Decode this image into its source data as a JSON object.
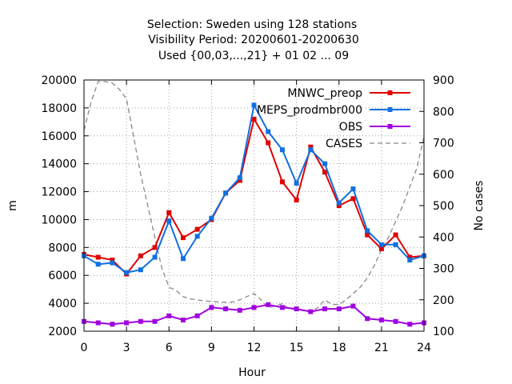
{
  "chart_data": {
    "type": "line",
    "title_lines": [
      "Selection: Sweden using   128 stations",
      "Visibility   Period: 20200601-20200630",
      "Used {00,03,...,21} + 01 02 ... 09"
    ],
    "xlabel": "Hour",
    "ylabel": "m",
    "y2label": "No cases",
    "xlim": [
      0,
      24
    ],
    "ylim": [
      2000,
      20000
    ],
    "y2lim": [
      100,
      900
    ],
    "xticks": [
      0,
      3,
      6,
      9,
      12,
      15,
      18,
      21,
      24
    ],
    "yticks": [
      2000,
      4000,
      6000,
      8000,
      10000,
      12000,
      14000,
      16000,
      18000,
      20000
    ],
    "y2ticks": [
      100,
      200,
      300,
      400,
      500,
      600,
      700,
      800,
      900
    ],
    "grid": true,
    "legend_position": "top-right",
    "x": [
      0,
      1,
      2,
      3,
      4,
      5,
      6,
      7,
      8,
      9,
      10,
      11,
      12,
      13,
      14,
      15,
      16,
      17,
      18,
      19,
      20,
      21,
      22,
      23,
      24
    ],
    "series": [
      {
        "name": "MNWC_preop",
        "color": "#e00000",
        "marker": "square",
        "axis": "left",
        "values": [
          7500,
          7300,
          7100,
          6100,
          7400,
          8000,
          10500,
          8700,
          9300,
          10000,
          11900,
          12800,
          17200,
          15500,
          12700,
          11400,
          15200,
          13400,
          11000,
          11500,
          8900,
          7900,
          8900,
          7300,
          7400
        ]
      },
      {
        "name": "MEPS_prodmbr000",
        "color": "#1070e0",
        "marker": "square",
        "axis": "left",
        "values": [
          7400,
          6800,
          6900,
          6200,
          6400,
          7300,
          9900,
          7200,
          8800,
          10100,
          11900,
          13000,
          18200,
          16300,
          15000,
          12600,
          15000,
          14000,
          11200,
          12200,
          9200,
          8200,
          8200,
          7100,
          7400
        ]
      },
      {
        "name": "OBS",
        "color": "#a000e0",
        "marker": "square",
        "axis": "left",
        "values": [
          2700,
          2600,
          2500,
          2600,
          2700,
          2700,
          3100,
          2800,
          3100,
          3700,
          3600,
          3500,
          3700,
          3900,
          3700,
          3600,
          3400,
          3600,
          3600,
          3800,
          2900,
          2800,
          2700,
          2500,
          2600
        ]
      },
      {
        "name": "CASES",
        "color": "#888888",
        "dashed": true,
        "axis": "right",
        "x": [
          0,
          0.5,
          1,
          1.5,
          2,
          2.5,
          3,
          3.5,
          4,
          4.5,
          5,
          5.5,
          6,
          6.5,
          7,
          7.5,
          8,
          8.5,
          9,
          9.5,
          10,
          10.5,
          11,
          11.5,
          12,
          12.5,
          13,
          13.5,
          14,
          14.5,
          15,
          15.5,
          16,
          16.5,
          17,
          17.5,
          18,
          18.5,
          19,
          19.5,
          20,
          20.5,
          21,
          21.5,
          22,
          22.5,
          23,
          23.5,
          24
        ],
        "values": [
          740,
          830,
          895,
          895,
          890,
          870,
          840,
          720,
          600,
          500,
          400,
          300,
          240,
          230,
          210,
          203,
          200,
          196,
          195,
          193,
          192,
          193,
          200,
          210,
          220,
          200,
          175,
          180,
          188,
          170,
          170,
          165,
          160,
          175,
          200,
          185,
          185,
          200,
          220,
          240,
          270,
          310,
          360,
          400,
          450,
          500,
          560,
          620,
          720
        ]
      }
    ]
  }
}
